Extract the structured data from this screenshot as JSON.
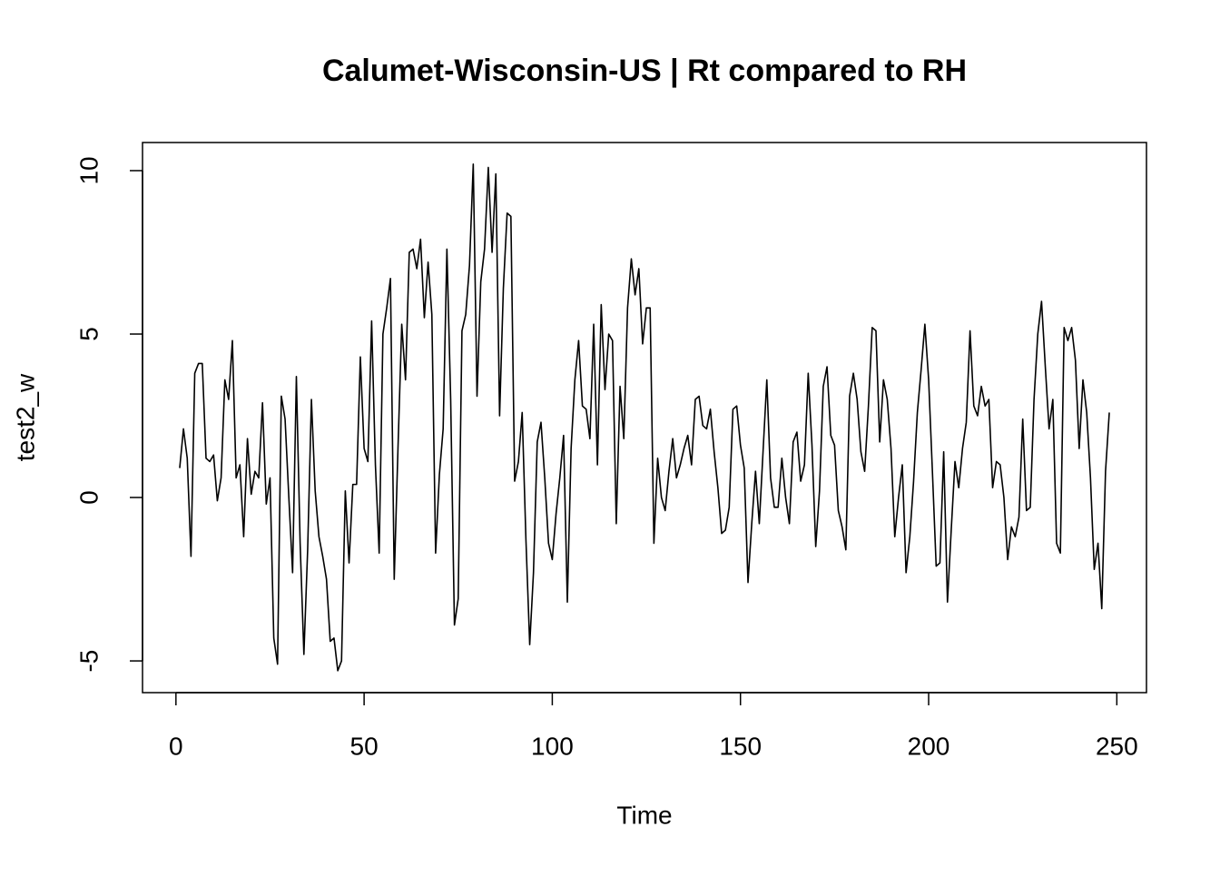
{
  "chart_data": {
    "type": "line",
    "title": "Calumet-Wisconsin-US | Rt compared to RH",
    "x_label": "Time",
    "y_label": "test2_w",
    "color": "#000000",
    "xlim": [
      -8.88,
      257.88
    ],
    "ylim": [
      -5.97,
      10.86
    ],
    "xticks": [
      0,
      50,
      100,
      150,
      200,
      250
    ],
    "yticks": [
      -5,
      0,
      5,
      10
    ],
    "x": [
      1,
      2,
      3,
      4,
      5,
      6,
      7,
      8,
      9,
      10,
      11,
      12,
      13,
      14,
      15,
      16,
      17,
      18,
      19,
      20,
      21,
      22,
      23,
      24,
      25,
      26,
      27,
      28,
      29,
      30,
      31,
      32,
      33,
      34,
      35,
      36,
      37,
      38,
      39,
      40,
      41,
      42,
      43,
      44,
      45,
      46,
      47,
      48,
      49,
      50,
      51,
      52,
      53,
      54,
      55,
      56,
      57,
      58,
      59,
      60,
      61,
      62,
      63,
      64,
      65,
      66,
      67,
      68,
      69,
      70,
      71,
      72,
      73,
      74,
      75,
      76,
      77,
      78,
      79,
      80,
      81,
      82,
      83,
      84,
      85,
      86,
      87,
      88,
      89,
      90,
      91,
      92,
      93,
      94,
      95,
      96,
      97,
      98,
      99,
      100,
      101,
      102,
      103,
      104,
      105,
      106,
      107,
      108,
      109,
      110,
      111,
      112,
      113,
      114,
      115,
      116,
      117,
      118,
      119,
      120,
      121,
      122,
      123,
      124,
      125,
      126,
      127,
      128,
      129,
      130,
      131,
      132,
      133,
      134,
      135,
      136,
      137,
      138,
      139,
      140,
      141,
      142,
      143,
      144,
      145,
      146,
      147,
      148,
      149,
      150,
      151,
      152,
      153,
      154,
      155,
      156,
      157,
      158,
      159,
      160,
      161,
      162,
      163,
      164,
      165,
      166,
      167,
      168,
      169,
      170,
      171,
      172,
      173,
      174,
      175,
      176,
      177,
      178,
      179,
      180,
      181,
      182,
      183,
      184,
      185,
      186,
      187,
      188,
      189,
      190,
      191,
      192,
      193,
      194,
      195,
      196,
      197,
      198,
      199,
      200,
      201,
      202,
      203,
      204,
      205,
      206,
      207,
      208,
      209,
      210,
      211,
      212,
      213,
      214,
      215,
      216,
      217,
      218,
      219,
      220,
      221,
      222,
      223,
      224,
      225,
      226,
      227,
      228,
      229,
      230,
      231,
      232,
      233,
      234,
      235,
      236,
      237,
      238,
      239,
      240,
      241,
      242,
      243,
      244,
      245,
      246,
      247,
      248
    ],
    "values": [
      0.9,
      2.1,
      1.2,
      -1.8,
      3.8,
      4.1,
      4.1,
      1.2,
      1.1,
      1.3,
      -0.1,
      0.6,
      3.6,
      3.0,
      4.8,
      0.6,
      1.0,
      -1.2,
      1.8,
      0.1,
      0.8,
      0.6,
      2.9,
      -0.2,
      0.6,
      -4.3,
      -5.1,
      3.1,
      2.4,
      0.0,
      -2.3,
      3.7,
      -1.4,
      -4.8,
      -1.6,
      3.0,
      0.2,
      -1.2,
      -1.8,
      -2.5,
      -4.4,
      -4.3,
      -5.3,
      -5.0,
      0.2,
      -2.0,
      0.4,
      0.4,
      4.3,
      1.5,
      1.1,
      5.4,
      1.0,
      -1.7,
      5.0,
      5.8,
      6.7,
      -2.5,
      1.5,
      5.3,
      3.6,
      7.5,
      7.6,
      7.0,
      7.9,
      5.5,
      7.2,
      5.6,
      -1.7,
      0.7,
      2.1,
      7.6,
      3.0,
      -3.9,
      -3.1,
      5.1,
      5.6,
      7.1,
      10.2,
      3.1,
      6.6,
      7.6,
      10.1,
      7.5,
      9.9,
      2.5,
      6.4,
      8.7,
      8.6,
      0.5,
      1.1,
      2.6,
      -1.3,
      -4.5,
      -2.3,
      1.7,
      2.3,
      0.6,
      -1.4,
      -1.9,
      -0.5,
      0.6,
      1.9,
      -3.2,
      1.5,
      3.6,
      4.8,
      2.8,
      2.7,
      1.8,
      5.3,
      1.0,
      5.9,
      3.3,
      5.0,
      4.8,
      -0.8,
      3.4,
      1.8,
      5.8,
      7.3,
      6.2,
      7.0,
      4.7,
      5.8,
      5.8,
      -1.4,
      1.2,
      0.0,
      -0.4,
      0.8,
      1.8,
      0.6,
      1.0,
      1.5,
      1.9,
      1.0,
      3.0,
      3.1,
      2.2,
      2.1,
      2.7,
      1.4,
      0.3,
      -1.1,
      -1.0,
      -0.3,
      2.7,
      2.8,
      1.6,
      0.9,
      -2.6,
      -0.8,
      0.8,
      -0.8,
      1.4,
      3.6,
      0.6,
      -0.3,
      -0.3,
      1.2,
      0.0,
      -0.8,
      1.7,
      2.0,
      0.5,
      1.0,
      3.8,
      1.6,
      -1.5,
      0.2,
      3.4,
      4.0,
      1.9,
      1.6,
      -0.4,
      -0.9,
      -1.6,
      3.1,
      3.8,
      3.0,
      1.4,
      0.8,
      2.8,
      5.2,
      5.1,
      1.7,
      3.6,
      3.0,
      1.5,
      -1.2,
      0.0,
      1.0,
      -2.3,
      -1.2,
      0.5,
      2.6,
      3.9,
      5.3,
      3.6,
      0.8,
      -2.1,
      -2.0,
      1.4,
      -3.2,
      -1.0,
      1.1,
      0.3,
      1.5,
      2.3,
      5.1,
      2.8,
      2.5,
      3.4,
      2.8,
      3.0,
      0.3,
      1.1,
      1.0,
      0.0,
      -1.9,
      -0.9,
      -1.2,
      -0.6,
      2.4,
      -0.4,
      -0.3,
      3.0,
      5.0,
      6.0,
      4.0,
      2.1,
      3.0,
      -1.4,
      -1.7,
      5.2,
      4.8,
      5.2,
      4.2,
      1.5,
      3.6,
      2.6,
      0.6,
      -2.2,
      -1.4,
      -3.4,
      0.8,
      2.6
    ]
  }
}
